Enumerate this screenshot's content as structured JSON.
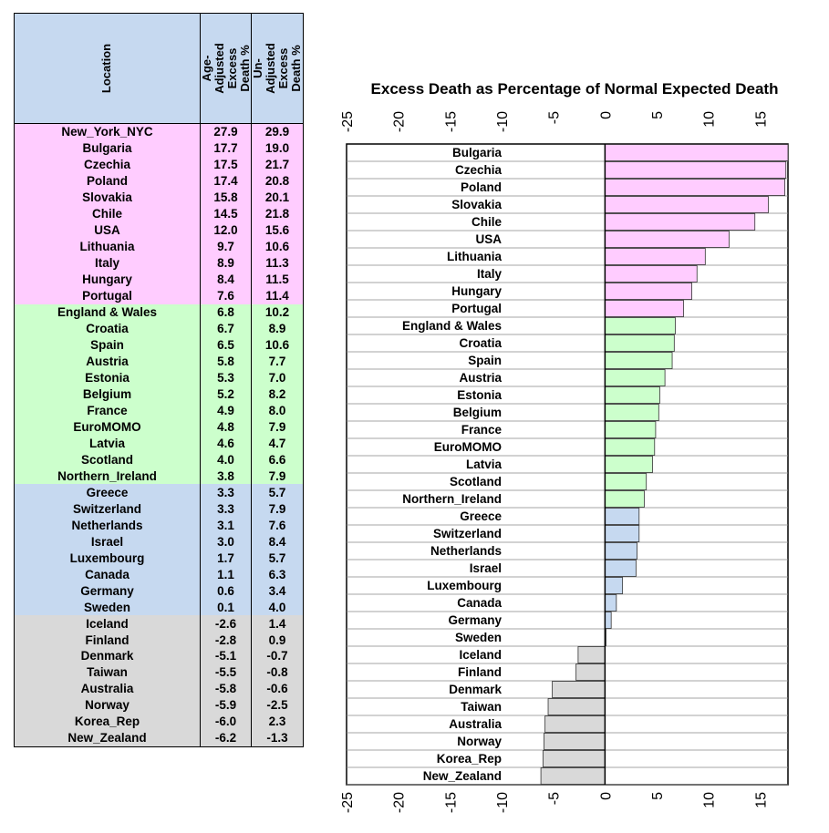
{
  "table": {
    "headers": {
      "location": "Location",
      "age_adjusted": "Age-Adjusted Excess Death %",
      "un_adjusted": "Un-Adjusted Excess Death %"
    },
    "rows": [
      {
        "location": "New_York_NYC",
        "age": "27.9",
        "un": "29.9",
        "group": "pink"
      },
      {
        "location": "Bulgaria",
        "age": "17.7",
        "un": "19.0",
        "group": "pink"
      },
      {
        "location": "Czechia",
        "age": "17.5",
        "un": "21.7",
        "group": "pink"
      },
      {
        "location": "Poland",
        "age": "17.4",
        "un": "20.8",
        "group": "pink"
      },
      {
        "location": "Slovakia",
        "age": "15.8",
        "un": "20.1",
        "group": "pink"
      },
      {
        "location": "Chile",
        "age": "14.5",
        "un": "21.8",
        "group": "pink"
      },
      {
        "location": "USA",
        "age": "12.0",
        "un": "15.6",
        "group": "pink"
      },
      {
        "location": "Lithuania",
        "age": "9.7",
        "un": "10.6",
        "group": "pink"
      },
      {
        "location": "Italy",
        "age": "8.9",
        "un": "11.3",
        "group": "pink"
      },
      {
        "location": "Hungary",
        "age": "8.4",
        "un": "11.5",
        "group": "pink"
      },
      {
        "location": "Portugal",
        "age": "7.6",
        "un": "11.4",
        "group": "pink"
      },
      {
        "location": "England & Wales",
        "age": "6.8",
        "un": "10.2",
        "group": "green"
      },
      {
        "location": "Croatia",
        "age": "6.7",
        "un": "8.9",
        "group": "green"
      },
      {
        "location": "Spain",
        "age": "6.5",
        "un": "10.6",
        "group": "green"
      },
      {
        "location": "Austria",
        "age": "5.8",
        "un": "7.7",
        "group": "green"
      },
      {
        "location": "Estonia",
        "age": "5.3",
        "un": "7.0",
        "group": "green"
      },
      {
        "location": "Belgium",
        "age": "5.2",
        "un": "8.2",
        "group": "green"
      },
      {
        "location": "France",
        "age": "4.9",
        "un": "8.0",
        "group": "green"
      },
      {
        "location": "EuroMOMO",
        "age": "4.8",
        "un": "7.9",
        "group": "green"
      },
      {
        "location": "Latvia",
        "age": "4.6",
        "un": "4.7",
        "group": "green"
      },
      {
        "location": "Scotland",
        "age": "4.0",
        "un": "6.6",
        "group": "green"
      },
      {
        "location": "Northern_Ireland",
        "age": "3.8",
        "un": "7.9",
        "group": "green"
      },
      {
        "location": "Greece",
        "age": "3.3",
        "un": "5.7",
        "group": "blue"
      },
      {
        "location": "Switzerland",
        "age": "3.3",
        "un": "7.9",
        "group": "blue"
      },
      {
        "location": "Netherlands",
        "age": "3.1",
        "un": "7.6",
        "group": "blue"
      },
      {
        "location": "Israel",
        "age": "3.0",
        "un": "8.4",
        "group": "blue"
      },
      {
        "location": "Luxembourg",
        "age": "1.7",
        "un": "5.7",
        "group": "blue"
      },
      {
        "location": "Canada",
        "age": "1.1",
        "un": "6.3",
        "group": "blue"
      },
      {
        "location": "Germany",
        "age": "0.6",
        "un": "3.4",
        "group": "blue"
      },
      {
        "location": "Sweden",
        "age": "0.1",
        "un": "4.0",
        "group": "blue"
      },
      {
        "location": "Iceland",
        "age": "-2.6",
        "un": "1.4",
        "group": "gray"
      },
      {
        "location": "Finland",
        "age": "-2.8",
        "un": "0.9",
        "group": "gray"
      },
      {
        "location": "Denmark",
        "age": "-5.1",
        "un": "-0.7",
        "group": "gray"
      },
      {
        "location": "Taiwan",
        "age": "-5.5",
        "un": "-0.8",
        "group": "gray"
      },
      {
        "location": "Australia",
        "age": "-5.8",
        "un": "-0.6",
        "group": "gray"
      },
      {
        "location": "Norway",
        "age": "-5.9",
        "un": "-2.5",
        "group": "gray"
      },
      {
        "location": "Korea_Rep",
        "age": "-6.0",
        "un": "2.3",
        "group": "gray"
      },
      {
        "location": "New_Zealand",
        "age": "-6.2",
        "un": "-1.3",
        "group": "gray"
      }
    ]
  },
  "colors": {
    "pink": "#ffccff",
    "green": "#ccffcc",
    "blue": "#c6d9f0",
    "gray": "#d9d9d9"
  },
  "chart_data": {
    "type": "bar",
    "orientation": "horizontal",
    "title": "Excess Death as Percentage of Normal Expected Death",
    "xlim": [
      -25,
      17.7
    ],
    "ticks": [
      -25,
      -20,
      -15,
      -10,
      -5,
      0,
      5,
      10,
      15
    ],
    "categories": [
      "Bulgaria",
      "Czechia",
      "Poland",
      "Slovakia",
      "Chile",
      "USA",
      "Lithuania",
      "Italy",
      "Hungary",
      "Portugal",
      "England & Wales",
      "Croatia",
      "Spain",
      "Austria",
      "Estonia",
      "Belgium",
      "France",
      "EuroMOMO",
      "Latvia",
      "Scotland",
      "Northern_Ireland",
      "Greece",
      "Switzerland",
      "Netherlands",
      "Israel",
      "Luxembourg",
      "Canada",
      "Germany",
      "Sweden",
      "Iceland",
      "Finland",
      "Denmark",
      "Taiwan",
      "Australia",
      "Norway",
      "Korea_Rep",
      "New_Zealand"
    ],
    "values": [
      17.7,
      17.5,
      17.4,
      15.8,
      14.5,
      12.0,
      9.7,
      8.9,
      8.4,
      7.6,
      6.8,
      6.7,
      6.5,
      5.8,
      5.3,
      5.2,
      4.9,
      4.8,
      4.6,
      4.0,
      3.8,
      3.3,
      3.3,
      3.1,
      3.0,
      1.7,
      1.1,
      0.6,
      0.1,
      -2.6,
      -2.8,
      -5.1,
      -5.5,
      -5.8,
      -5.9,
      -6.0,
      -6.2
    ],
    "groups": [
      "pink",
      "pink",
      "pink",
      "pink",
      "pink",
      "pink",
      "pink",
      "pink",
      "pink",
      "pink",
      "green",
      "green",
      "green",
      "green",
      "green",
      "green",
      "green",
      "green",
      "green",
      "green",
      "green",
      "blue",
      "blue",
      "blue",
      "blue",
      "blue",
      "blue",
      "blue",
      "blue",
      "gray",
      "gray",
      "gray",
      "gray",
      "gray",
      "gray",
      "gray",
      "gray"
    ]
  }
}
